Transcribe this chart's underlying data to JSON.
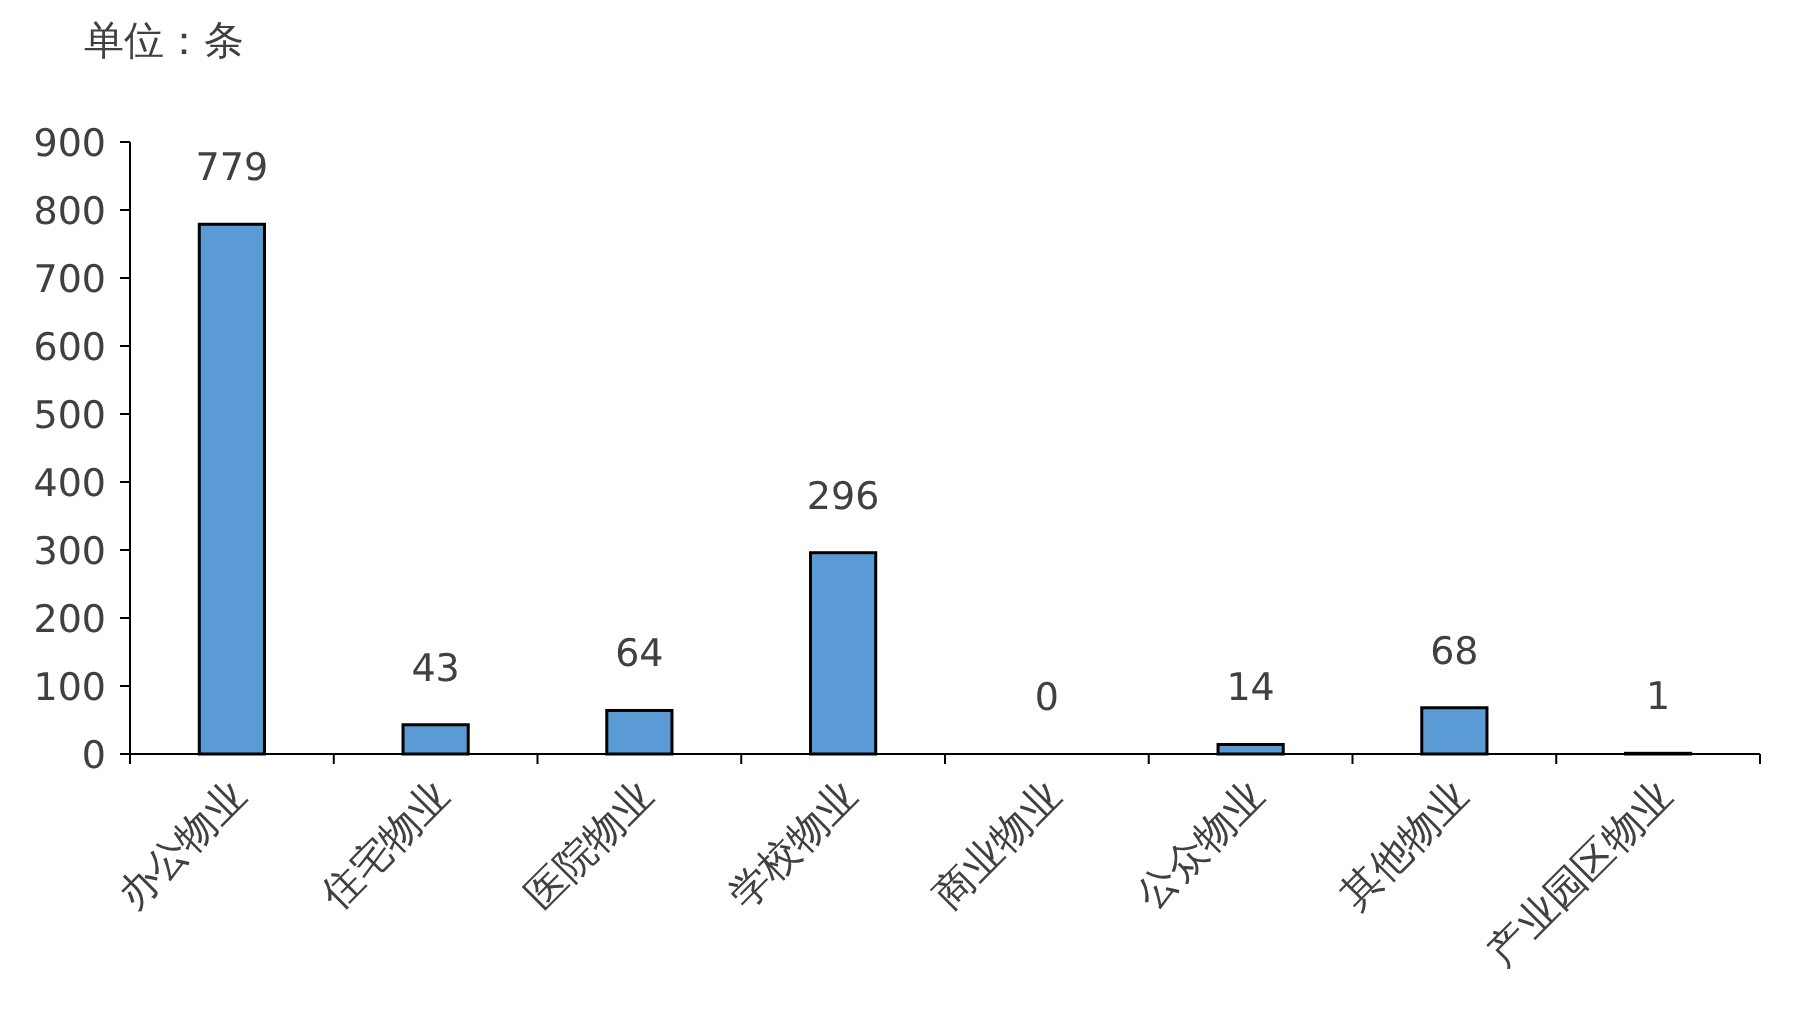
{
  "chart_data": {
    "type": "bar",
    "ylabel": "单位：条",
    "categories": [
      "办公物业",
      "住宅物业",
      "医院物业",
      "学校物业",
      "商业物业",
      "公众物业",
      "其他物业",
      "产业园区物业"
    ],
    "values": [
      779,
      43,
      64,
      296,
      0,
      14,
      68,
      1
    ],
    "color": "#5b9bd5",
    "ylim": [
      0,
      900
    ],
    "yticks": [
      0,
      100,
      200,
      300,
      400,
      500,
      600,
      700,
      800,
      900
    ],
    "data_labels": true
  }
}
